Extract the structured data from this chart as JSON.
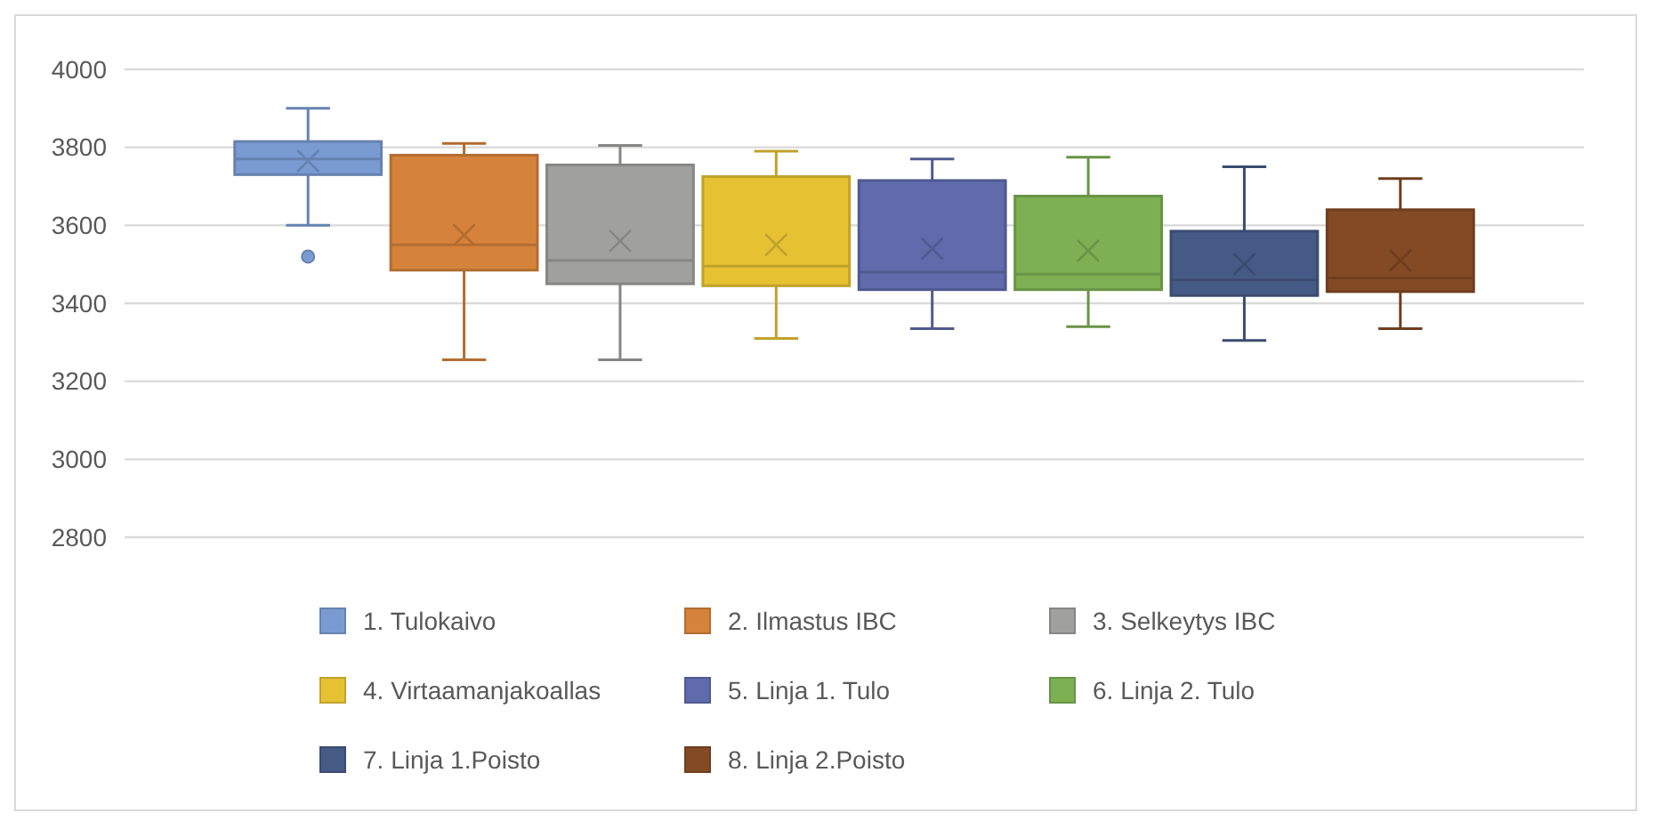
{
  "chart_data": {
    "type": "box",
    "categories": [
      null
    ],
    "series": [
      {
        "name": "1. Tulokaivo",
        "color": "#7a9bd2",
        "boxes": [
          {
            "low": 3600,
            "q1": 3730,
            "median": 3770,
            "q3": 3815,
            "high": 3900,
            "mean": 3765,
            "outliers": [
              3520
            ]
          }
        ]
      },
      {
        "name": "2. Ilmastus IBC",
        "color": "#d5823a",
        "boxes": [
          {
            "low": 3255,
            "q1": 3485,
            "median": 3550,
            "q3": 3780,
            "high": 3810,
            "mean": 3575
          }
        ]
      },
      {
        "name": "3. Selkeytys IBC",
        "color": "#a0a09e",
        "boxes": [
          {
            "low": 3255,
            "q1": 3450,
            "median": 3510,
            "q3": 3755,
            "high": 3805,
            "mean": 3560
          }
        ]
      },
      {
        "name": "4. Virtaamanjakoallas",
        "color": "#e6c233",
        "boxes": [
          {
            "low": 3310,
            "q1": 3445,
            "median": 3495,
            "q3": 3725,
            "high": 3790,
            "mean": 3550
          }
        ]
      },
      {
        "name": "5. Linja 1. Tulo",
        "color": "#5f6bab",
        "boxes": [
          {
            "low": 3335,
            "q1": 3435,
            "median": 3480,
            "q3": 3715,
            "high": 3770,
            "mean": 3540
          }
        ]
      },
      {
        "name": "6. Linja 2. Tulo",
        "color": "#7db053",
        "boxes": [
          {
            "low": 3340,
            "q1": 3435,
            "median": 3475,
            "q3": 3675,
            "high": 3775,
            "mean": 3535
          }
        ]
      },
      {
        "name": "7. Linja 1.Poisto",
        "color": "#465a86",
        "boxes": [
          {
            "low": 3305,
            "q1": 3420,
            "median": 3460,
            "q3": 3585,
            "high": 3750,
            "mean": 3500
          }
        ]
      },
      {
        "name": "8. Linja 2.Poisto",
        "color": "#834a24",
        "boxes": [
          {
            "low": 3335,
            "q1": 3430,
            "median": 3465,
            "q3": 3640,
            "high": 3720,
            "mean": 3510
          }
        ]
      }
    ],
    "ylim": [
      2800,
      4000
    ],
    "yticks": [
      2800,
      3000,
      3200,
      3400,
      3600,
      3800,
      4000
    ],
    "grid": "y",
    "legend": "bottom"
  }
}
